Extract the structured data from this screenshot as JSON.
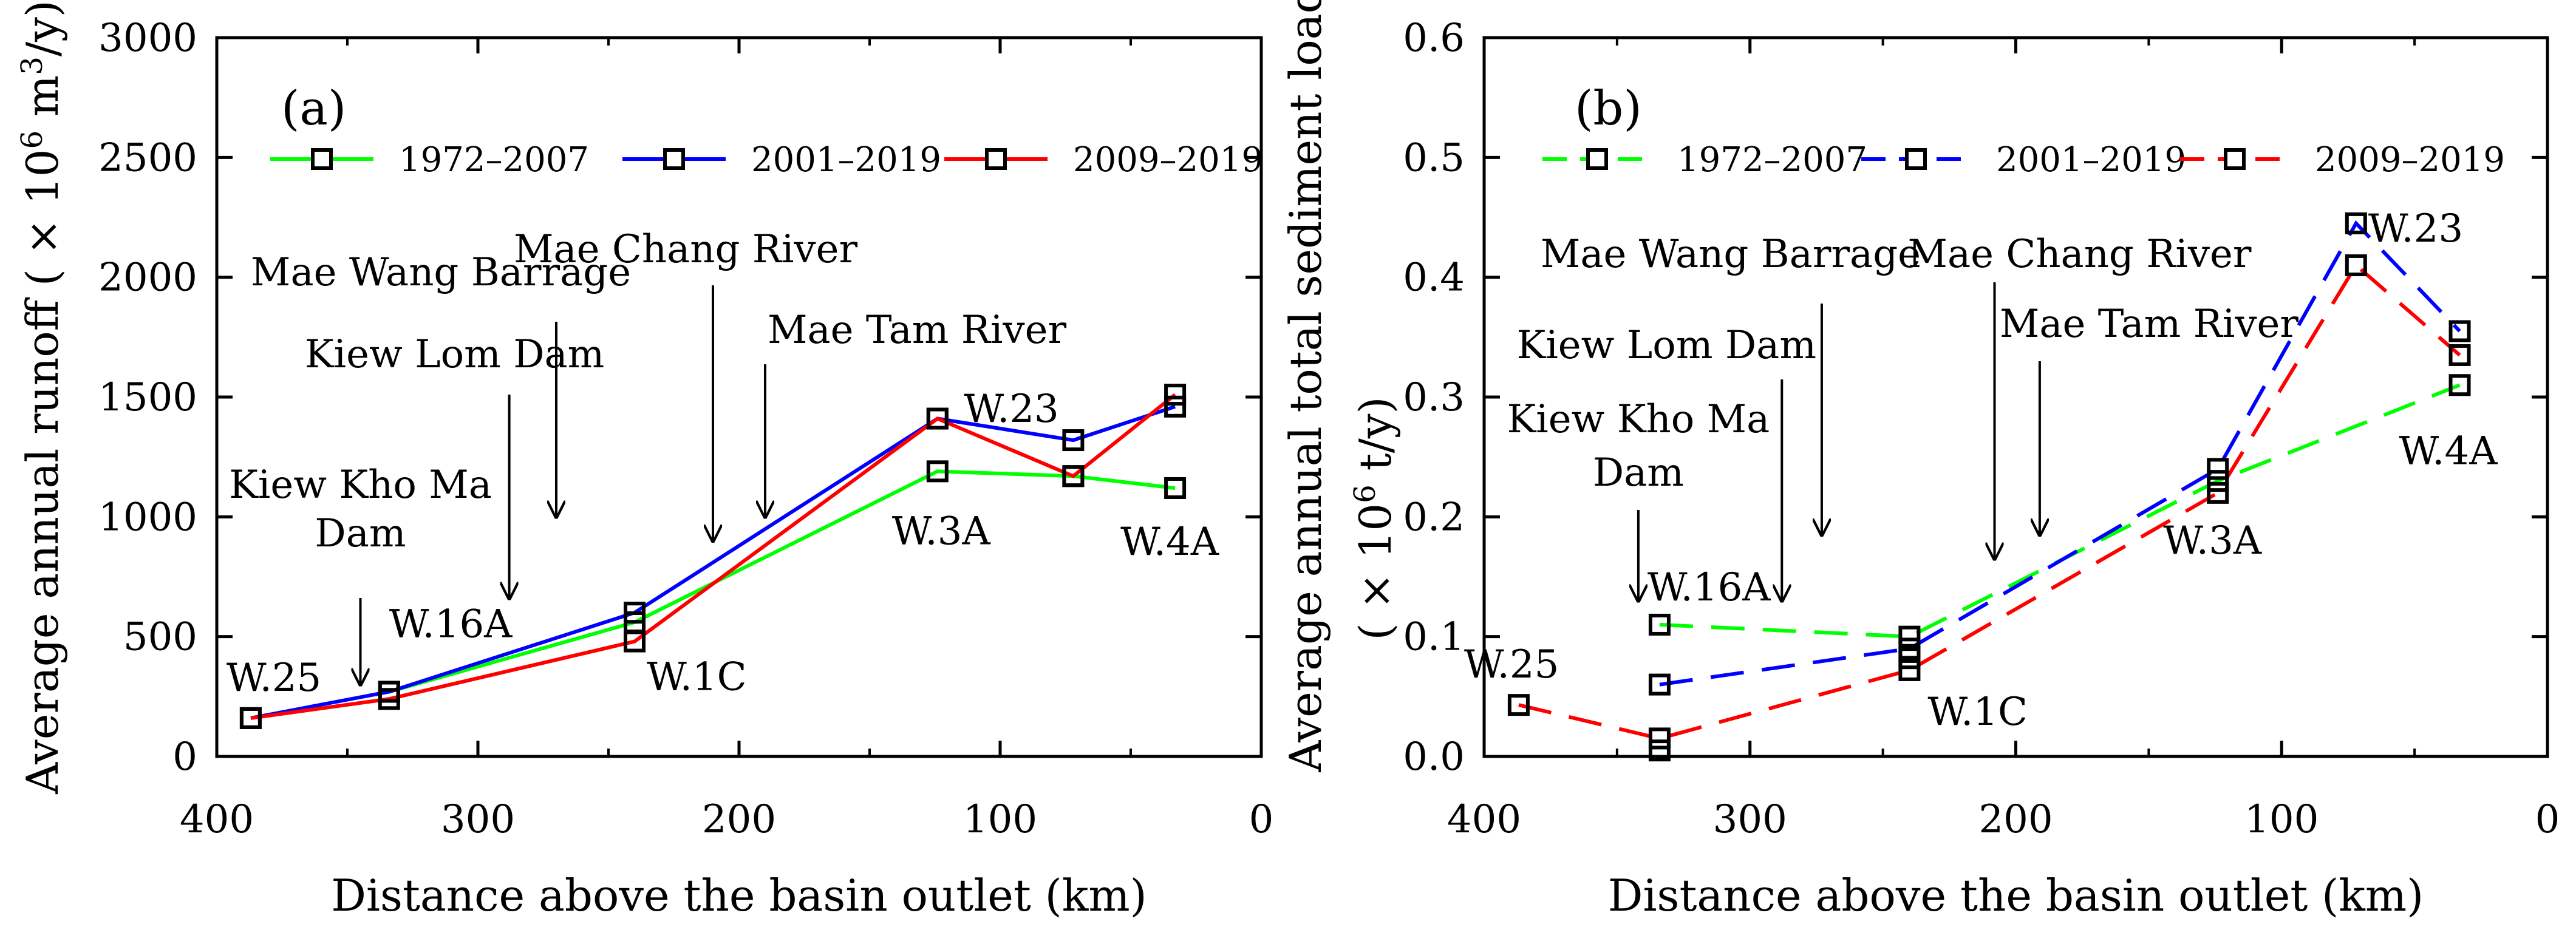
{
  "chart_data": [
    {
      "type": "line",
      "panel_label": "(a)",
      "xlabel": "Distance above the basin outlet (km)",
      "ylabel_parts": [
        "Average annual runoff ( × 10",
        "6",
        " m",
        "3",
        "/y)"
      ],
      "xlim": [
        400,
        0
      ],
      "ylim": [
        0,
        3000
      ],
      "xticks": [
        "400",
        "300",
        "200",
        "100",
        "0"
      ],
      "yticks": [
        "0",
        "500",
        "1000",
        "1500",
        "2000",
        "2500",
        "3000"
      ],
      "line_style": "solid",
      "legend_position": "top",
      "series": [
        {
          "name": "1972–2007",
          "color": "#00ff00",
          "x": [
            334,
            240,
            124,
            72,
            33
          ],
          "y": [
            270,
            560,
            1190,
            1170,
            1120
          ]
        },
        {
          "name": "2001–2019",
          "color": "#0000ff",
          "x": [
            387,
            334,
            240,
            124,
            72,
            33
          ],
          "y": [
            160,
            270,
            600,
            1410,
            1320,
            1460
          ]
        },
        {
          "name": "2009–2019",
          "color": "#ff0000",
          "x": [
            387,
            334,
            240,
            124,
            72,
            33
          ],
          "y": [
            160,
            240,
            480,
            1410,
            1170,
            1510
          ]
        }
      ],
      "station_labels": [
        {
          "text": "W.25",
          "x": 387,
          "y": 160
        },
        {
          "text": "W.16A",
          "x": 334,
          "y": 270
        },
        {
          "text": "W.1C",
          "x": 240,
          "y": 480
        },
        {
          "text": "W.3A",
          "x": 124,
          "y": 1190
        },
        {
          "text": "W.23",
          "x": 72,
          "y": 1320
        },
        {
          "text": "W.4A",
          "x": 33,
          "y": 1120
        }
      ],
      "arrows": [
        {
          "lines": [
            "Kiew Kho Ma",
            "Dam"
          ],
          "x": 345,
          "y_tip": 300
        },
        {
          "lines": [
            "Kiew Lom Dam"
          ],
          "x": 288,
          "y_tip": 660
        },
        {
          "lines": [
            "Mae Wang Barrage"
          ],
          "x": 270,
          "y_tip": 1000
        },
        {
          "lines": [
            "Mae Chang River"
          ],
          "x": 210,
          "y_tip": 900
        },
        {
          "lines": [
            "Mae Tam River"
          ],
          "x": 190,
          "y_tip": 1000
        }
      ]
    },
    {
      "type": "line",
      "panel_label": "(b)",
      "xlabel": "Distance above the basin outlet (km)",
      "ylabel_line1": "Average annual total sediment load",
      "ylabel_parts": [
        "( × 10",
        "6",
        " t/y)"
      ],
      "xlim": [
        400,
        0
      ],
      "ylim": [
        0,
        0.6
      ],
      "xticks": [
        "400",
        "300",
        "200",
        "100",
        "0"
      ],
      "yticks": [
        "0.0",
        "0.1",
        "0.2",
        "0.3",
        "0.4",
        "0.5",
        "0.6"
      ],
      "line_style": "dashed",
      "legend_position": "top",
      "series": [
        {
          "name": "1972–2007",
          "color": "#00ff00",
          "x": [
            334,
            240,
            124,
            33
          ],
          "y": [
            0.11,
            0.1,
            0.23,
            0.31
          ]
        },
        {
          "name": "2001–2019",
          "color": "#0000ff",
          "x": [
            334,
            240,
            124,
            72,
            33
          ],
          "y": [
            0.06,
            0.09,
            0.24,
            0.445,
            0.355
          ]
        },
        {
          "name": "2009–2019",
          "color": "#ff0000",
          "x": [
            387,
            334,
            240,
            124,
            72,
            33
          ],
          "y": [
            0.043,
            0.015,
            0.072,
            0.22,
            0.41,
            0.335
          ]
        }
      ],
      "extra_markers": [
        {
          "x": 334,
          "y": 0.005
        },
        {
          "x": 240,
          "y": 0.082
        }
      ],
      "station_labels": [
        {
          "text": "W.25",
          "x": 387,
          "y": 0.043
        },
        {
          "text": "W.16A",
          "x": 334,
          "y": 0.11
        },
        {
          "text": "W.1C",
          "x": 240,
          "y": 0.072
        },
        {
          "text": "W.3A",
          "x": 124,
          "y": 0.22
        },
        {
          "text": "W.23",
          "x": 72,
          "y": 0.445
        },
        {
          "text": "W.4A",
          "x": 33,
          "y": 0.31
        }
      ],
      "arrows": [
        {
          "lines": [
            "Kiew Kho Ma",
            "Dam"
          ],
          "x": 342,
          "y_tip": 0.13
        },
        {
          "lines": [
            "Kiew Lom Dam"
          ],
          "x": 288,
          "y_tip": 0.13
        },
        {
          "lines": [
            "Mae Wang Barrage"
          ],
          "x": 273,
          "y_tip": 0.185
        },
        {
          "lines": [
            "Mae Chang River"
          ],
          "x": 208,
          "y_tip": 0.165
        },
        {
          "lines": [
            "Mae Tam River"
          ],
          "x": 191,
          "y_tip": 0.185
        }
      ]
    }
  ]
}
